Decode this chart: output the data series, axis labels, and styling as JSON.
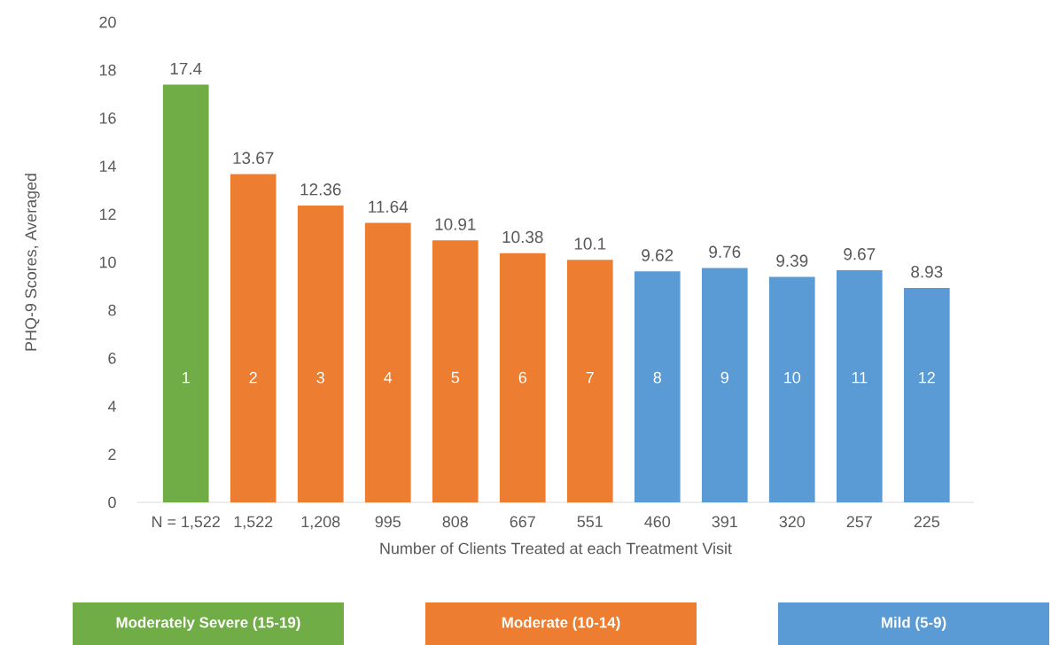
{
  "chart_data": {
    "type": "bar",
    "xlabel": "Number of Clients Treated at each Treatment Visit",
    "ylabel": "PHQ-9 Scores, Averaged",
    "categories": [
      "N = 1,522",
      "1,522",
      "1,208",
      "995",
      "808",
      "667",
      "551",
      "460",
      "391",
      "320",
      "257",
      "225"
    ],
    "series": [
      {
        "name": "Moderately Severe (15-19)",
        "color": "#70ad47",
        "values": [
          17.4,
          null,
          null,
          null,
          null,
          null,
          null,
          null,
          null,
          null,
          null,
          null
        ]
      },
      {
        "name": "Moderate (10-14)",
        "color": "#ed7d31",
        "values": [
          null,
          13.67,
          12.36,
          11.64,
          10.91,
          10.38,
          10.1,
          null,
          null,
          null,
          null,
          null
        ]
      },
      {
        "name": "Mild (5-9)",
        "color": "#5b9bd5",
        "values": [
          null,
          null,
          null,
          null,
          null,
          null,
          null,
          9.62,
          9.76,
          9.39,
          9.67,
          8.93
        ]
      }
    ],
    "ylim": [
      0,
      20
    ],
    "yticks": [
      0,
      2,
      4,
      6,
      8,
      10,
      12,
      14,
      16,
      18,
      20
    ],
    "data_labels": true,
    "legend": "bottom",
    "grid": false,
    "annotations": [
      "1",
      "2",
      "3",
      "4",
      "5",
      "6",
      "7",
      "8",
      "9",
      "10",
      "11",
      "12"
    ]
  }
}
